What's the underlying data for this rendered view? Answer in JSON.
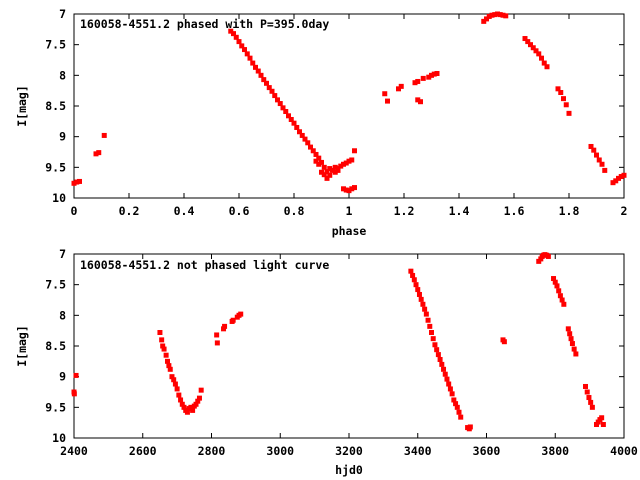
{
  "colors": {
    "points": "#ff0000",
    "frame": "#000000",
    "background": "#ffffff"
  },
  "chart_data": [
    {
      "type": "scatter",
      "title": "160058-4551.2 phased with P=395.0day",
      "xlabel": "phase",
      "ylabel": "I[mag]",
      "xlim": [
        0,
        2
      ],
      "ylim": [
        7,
        10
      ],
      "y_inverted": true,
      "grid": false,
      "xticks": [
        "0",
        "0.2",
        "0.4",
        "0.6",
        "0.8",
        "1",
        "1.2",
        "1.4",
        "1.6",
        "1.8",
        "2"
      ],
      "xtick_values": [
        0,
        0.2,
        0.4,
        0.6,
        0.8,
        1.0,
        1.2,
        1.4,
        1.6,
        1.8,
        2.0
      ],
      "yticks": [
        "7",
        "7.5",
        "8",
        "8.5",
        "9",
        "9.5",
        "10"
      ],
      "ytick_values": [
        7,
        7.5,
        8,
        8.5,
        9,
        9.5,
        10
      ],
      "points": [
        [
          0.0,
          9.76
        ],
        [
          0.01,
          9.74
        ],
        [
          0.02,
          9.73
        ],
        [
          0.08,
          9.28
        ],
        [
          0.09,
          9.26
        ],
        [
          0.11,
          8.98
        ],
        [
          0.57,
          7.28
        ],
        [
          0.58,
          7.32
        ],
        [
          0.59,
          7.38
        ],
        [
          0.6,
          7.45
        ],
        [
          0.61,
          7.52
        ],
        [
          0.62,
          7.58
        ],
        [
          0.63,
          7.65
        ],
        [
          0.64,
          7.72
        ],
        [
          0.65,
          7.8
        ],
        [
          0.66,
          7.87
        ],
        [
          0.67,
          7.93
        ],
        [
          0.68,
          8.0
        ],
        [
          0.69,
          8.07
        ],
        [
          0.7,
          8.13
        ],
        [
          0.71,
          8.2
        ],
        [
          0.72,
          8.26
        ],
        [
          0.73,
          8.33
        ],
        [
          0.74,
          8.4
        ],
        [
          0.75,
          8.46
        ],
        [
          0.76,
          8.53
        ],
        [
          0.77,
          8.59
        ],
        [
          0.78,
          8.66
        ],
        [
          0.79,
          8.72
        ],
        [
          0.8,
          8.78
        ],
        [
          0.81,
          8.85
        ],
        [
          0.82,
          8.92
        ],
        [
          0.83,
          8.98
        ],
        [
          0.84,
          9.04
        ],
        [
          0.85,
          9.1
        ],
        [
          0.86,
          9.17
        ],
        [
          0.87,
          9.23
        ],
        [
          0.88,
          9.29
        ],
        [
          0.89,
          9.35
        ],
        [
          0.9,
          9.42
        ],
        [
          0.91,
          9.5
        ],
        [
          0.92,
          9.57
        ],
        [
          0.93,
          9.63
        ],
        [
          0.94,
          9.55
        ],
        [
          0.95,
          9.5
        ],
        [
          0.96,
          9.52
        ],
        [
          0.97,
          9.48
        ],
        [
          0.98,
          9.45
        ],
        [
          0.99,
          9.43
        ],
        [
          1.0,
          9.4
        ],
        [
          1.01,
          9.38
        ],
        [
          0.88,
          9.4
        ],
        [
          0.89,
          9.45
        ],
        [
          0.9,
          9.58
        ],
        [
          0.91,
          9.62
        ],
        [
          0.92,
          9.68
        ],
        [
          0.93,
          9.52
        ],
        [
          0.95,
          9.58
        ],
        [
          0.96,
          9.55
        ],
        [
          0.98,
          9.85
        ],
        [
          0.99,
          9.87
        ],
        [
          1.0,
          9.88
        ],
        [
          1.01,
          9.85
        ],
        [
          1.02,
          9.83
        ],
        [
          1.02,
          9.23
        ],
        [
          1.13,
          8.3
        ],
        [
          1.14,
          8.42
        ],
        [
          1.18,
          8.22
        ],
        [
          1.19,
          8.18
        ],
        [
          1.24,
          8.12
        ],
        [
          1.25,
          8.1
        ],
        [
          1.25,
          8.4
        ],
        [
          1.26,
          8.43
        ],
        [
          1.27,
          8.05
        ],
        [
          1.29,
          8.03
        ],
        [
          1.3,
          8.0
        ],
        [
          1.31,
          7.98
        ],
        [
          1.32,
          7.97
        ],
        [
          1.49,
          7.12
        ],
        [
          1.5,
          7.08
        ],
        [
          1.51,
          7.04
        ],
        [
          1.52,
          7.02
        ],
        [
          1.53,
          7.01
        ],
        [
          1.54,
          7.0
        ],
        [
          1.55,
          7.01
        ],
        [
          1.56,
          7.02
        ],
        [
          1.57,
          7.03
        ],
        [
          1.64,
          7.4
        ],
        [
          1.65,
          7.45
        ],
        [
          1.66,
          7.5
        ],
        [
          1.67,
          7.55
        ],
        [
          1.68,
          7.6
        ],
        [
          1.69,
          7.65
        ],
        [
          1.7,
          7.72
        ],
        [
          1.71,
          7.8
        ],
        [
          1.72,
          7.86
        ],
        [
          1.76,
          8.22
        ],
        [
          1.77,
          8.28
        ],
        [
          1.78,
          8.38
        ],
        [
          1.79,
          8.48
        ],
        [
          1.8,
          8.62
        ],
        [
          1.88,
          9.16
        ],
        [
          1.89,
          9.22
        ],
        [
          1.9,
          9.3
        ],
        [
          1.91,
          9.38
        ],
        [
          1.92,
          9.45
        ],
        [
          1.93,
          9.55
        ],
        [
          1.96,
          9.75
        ],
        [
          1.97,
          9.72
        ],
        [
          1.98,
          9.68
        ],
        [
          1.99,
          9.65
        ],
        [
          2.0,
          9.63
        ]
      ]
    },
    {
      "type": "scatter",
      "title": "160058-4551.2 not phased light curve",
      "xlabel": "hjd0",
      "ylabel": "I[mag]",
      "xlim": [
        2400,
        4000
      ],
      "ylim": [
        7,
        10
      ],
      "y_inverted": true,
      "grid": false,
      "xticks": [
        "2400",
        "2600",
        "2800",
        "3000",
        "3200",
        "3400",
        "3600",
        "3800",
        "4000"
      ],
      "xtick_values": [
        2400,
        2600,
        2800,
        3000,
        3200,
        3400,
        3600,
        3800,
        4000
      ],
      "yticks": [
        "7",
        "7.5",
        "8",
        "8.5",
        "9",
        "9.5",
        "10"
      ],
      "ytick_values": [
        7,
        7.5,
        8,
        8.5,
        9,
        9.5,
        10
      ],
      "points": [
        [
          2400,
          9.25
        ],
        [
          2401,
          9.28
        ],
        [
          2406,
          8.98
        ],
        [
          2650,
          8.28
        ],
        [
          2655,
          8.4
        ],
        [
          2658,
          8.5
        ],
        [
          2662,
          8.55
        ],
        [
          2668,
          8.65
        ],
        [
          2672,
          8.75
        ],
        [
          2676,
          8.82
        ],
        [
          2680,
          8.88
        ],
        [
          2685,
          9.0
        ],
        [
          2690,
          9.05
        ],
        [
          2695,
          9.12
        ],
        [
          2700,
          9.2
        ],
        [
          2705,
          9.3
        ],
        [
          2710,
          9.38
        ],
        [
          2715,
          9.45
        ],
        [
          2720,
          9.5
        ],
        [
          2725,
          9.55
        ],
        [
          2730,
          9.58
        ],
        [
          2735,
          9.52
        ],
        [
          2740,
          9.5
        ],
        [
          2745,
          9.55
        ],
        [
          2750,
          9.48
        ],
        [
          2755,
          9.45
        ],
        [
          2760,
          9.4
        ],
        [
          2765,
          9.35
        ],
        [
          2770,
          9.22
        ],
        [
          2815,
          8.32
        ],
        [
          2817,
          8.45
        ],
        [
          2835,
          8.22
        ],
        [
          2838,
          8.18
        ],
        [
          2860,
          8.1
        ],
        [
          2863,
          8.08
        ],
        [
          2875,
          8.03
        ],
        [
          2880,
          8.0
        ],
        [
          2885,
          7.98
        ],
        [
          3380,
          7.28
        ],
        [
          3385,
          7.35
        ],
        [
          3390,
          7.42
        ],
        [
          3395,
          7.5
        ],
        [
          3400,
          7.58
        ],
        [
          3405,
          7.66
        ],
        [
          3410,
          7.74
        ],
        [
          3415,
          7.82
        ],
        [
          3420,
          7.9
        ],
        [
          3425,
          7.98
        ],
        [
          3430,
          8.08
        ],
        [
          3435,
          8.18
        ],
        [
          3440,
          8.28
        ],
        [
          3445,
          8.38
        ],
        [
          3450,
          8.48
        ],
        [
          3455,
          8.56
        ],
        [
          3460,
          8.64
        ],
        [
          3465,
          8.72
        ],
        [
          3470,
          8.8
        ],
        [
          3475,
          8.88
        ],
        [
          3480,
          8.96
        ],
        [
          3485,
          9.04
        ],
        [
          3490,
          9.12
        ],
        [
          3495,
          9.2
        ],
        [
          3500,
          9.28
        ],
        [
          3505,
          9.38
        ],
        [
          3510,
          9.44
        ],
        [
          3515,
          9.5
        ],
        [
          3520,
          9.58
        ],
        [
          3525,
          9.66
        ],
        [
          3545,
          9.83
        ],
        [
          3550,
          9.85
        ],
        [
          3553,
          9.82
        ],
        [
          3648,
          8.4
        ],
        [
          3652,
          8.43
        ],
        [
          3752,
          7.12
        ],
        [
          3758,
          7.08
        ],
        [
          3762,
          7.04
        ],
        [
          3766,
          7.02
        ],
        [
          3770,
          7.01
        ],
        [
          3775,
          7.02
        ],
        [
          3780,
          7.04
        ],
        [
          3795,
          7.4
        ],
        [
          3800,
          7.46
        ],
        [
          3805,
          7.52
        ],
        [
          3810,
          7.6
        ],
        [
          3815,
          7.68
        ],
        [
          3820,
          7.75
        ],
        [
          3825,
          7.82
        ],
        [
          3838,
          8.22
        ],
        [
          3842,
          8.3
        ],
        [
          3846,
          8.38
        ],
        [
          3850,
          8.46
        ],
        [
          3855,
          8.55
        ],
        [
          3860,
          8.63
        ],
        [
          3888,
          9.16
        ],
        [
          3893,
          9.25
        ],
        [
          3898,
          9.34
        ],
        [
          3903,
          9.42
        ],
        [
          3908,
          9.5
        ],
        [
          3920,
          9.78
        ],
        [
          3925,
          9.74
        ],
        [
          3930,
          9.7
        ],
        [
          3935,
          9.67
        ],
        [
          3940,
          9.78
        ]
      ]
    }
  ]
}
